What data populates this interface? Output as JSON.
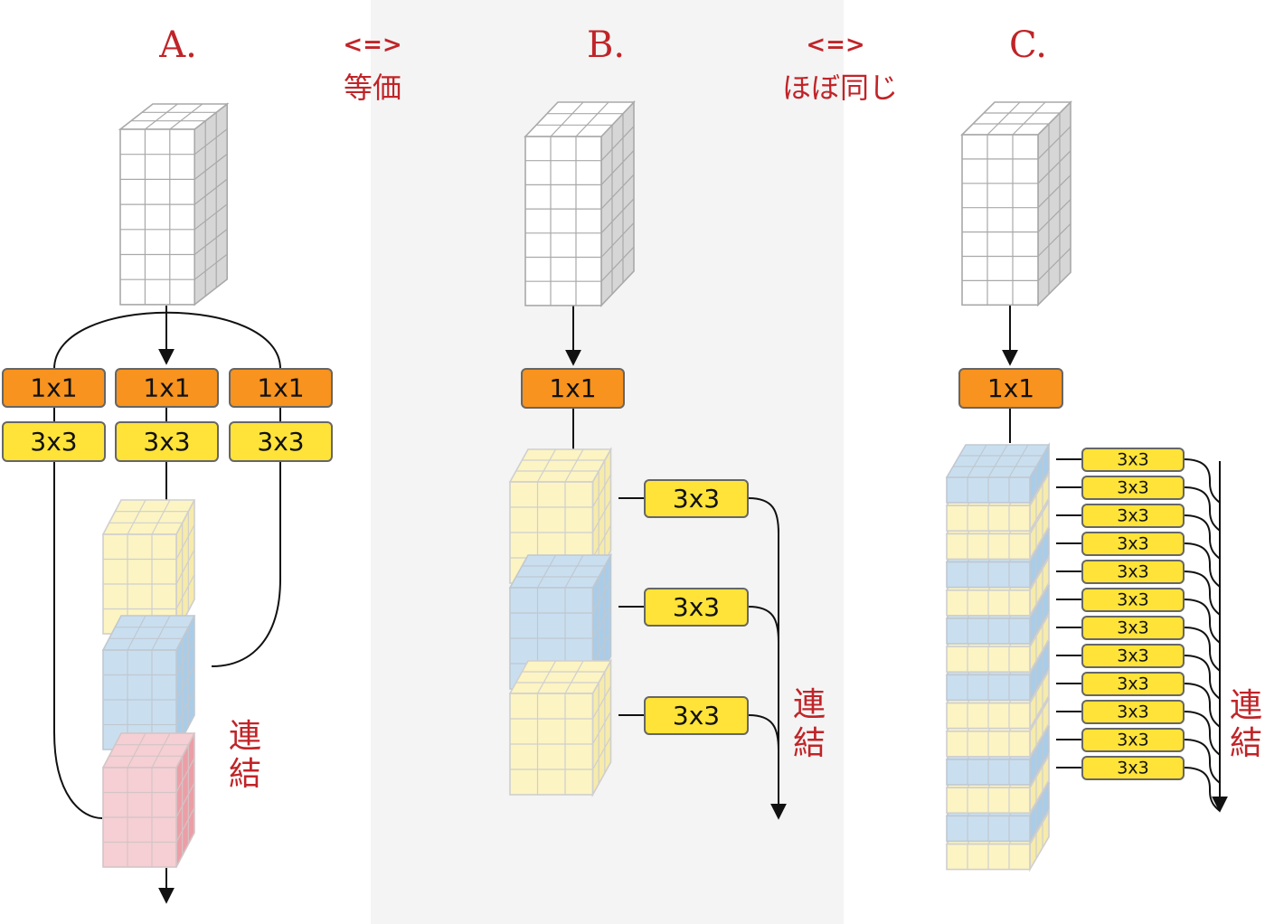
{
  "panels": [
    {
      "label": "A."
    },
    {
      "label": "B."
    },
    {
      "label": "C."
    }
  ],
  "relations": [
    {
      "arrow": "<=>",
      "text": "等価"
    },
    {
      "arrow": "<=>",
      "text": "ほぼ同じ"
    }
  ],
  "ops": {
    "conv1x1": "1x1",
    "conv3x3": "3x3"
  },
  "concat_label": [
    "連",
    "結"
  ],
  "colors": {
    "accent_red": "#c02428",
    "orange_box": "#f7931e",
    "yellow_box": "#ffe338",
    "box_stroke": "#666666",
    "shade_panel": "#f4f4f4",
    "cube_white": "#ffffff",
    "cube_yellow": "#fcf4c3",
    "cube_blue": "#c9dff0",
    "cube_pink": "#f5cfd3",
    "side_gray": "#d6d6d6",
    "side_yellow": "#f6ebaa",
    "side_blue": "#a9cde9",
    "side_pink": "#ec9ea6"
  }
}
